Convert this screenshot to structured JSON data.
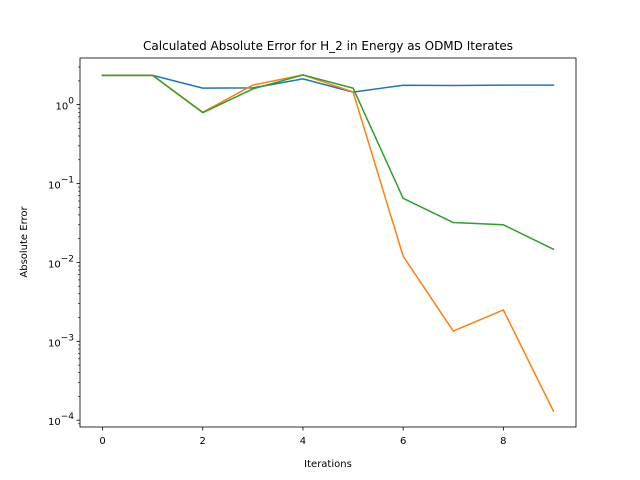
{
  "chart_data": {
    "type": "line",
    "title": "Calculated Absolute Error for H_2 in Energy as ODMD Iterates",
    "xlabel": "Iterations",
    "ylabel": "Absolute Error",
    "yscale": "log",
    "xlim": [
      -0.45,
      9.45
    ],
    "ylim": [
      8.2e-05,
      3.9
    ],
    "x_ticks": [
      0,
      2,
      4,
      6,
      8
    ],
    "x_tick_labels": [
      "0",
      "2",
      "4",
      "6",
      "8"
    ],
    "y_ticks": [
      0.0001,
      0.001,
      0.01,
      0.1,
      1
    ],
    "y_tick_labels": [
      {
        "base": "10",
        "exp": "−4"
      },
      {
        "base": "10",
        "exp": "−3"
      },
      {
        "base": "10",
        "exp": "−2"
      },
      {
        "base": "10",
        "exp": "−1"
      },
      {
        "base": "10",
        "exp": "0"
      }
    ],
    "grid": false,
    "legend": "none",
    "x": [
      0,
      1,
      2,
      3,
      4,
      5,
      6,
      7,
      8,
      9
    ],
    "series": [
      {
        "color": "#1f77b4",
        "values": [
          2.35,
          2.35,
          1.62,
          1.63,
          2.12,
          1.44,
          1.76,
          1.75,
          1.77,
          1.77
        ]
      },
      {
        "color": "#ff7f0e",
        "values": [
          2.35,
          2.35,
          0.8,
          1.77,
          2.38,
          1.45,
          0.012,
          0.00135,
          0.0025,
          0.00013
        ]
      },
      {
        "color": "#2ca02c",
        "values": [
          2.35,
          2.35,
          0.79,
          1.58,
          2.38,
          1.62,
          0.065,
          0.032,
          0.03,
          0.0147
        ]
      }
    ]
  }
}
